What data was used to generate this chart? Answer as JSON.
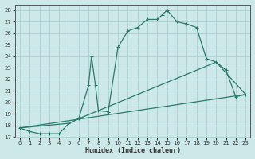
{
  "xlabel": "Humidex (Indice chaleur)",
  "ylabel": "",
  "bg_color": "#cce8e8",
  "grid_color": "#aad0d0",
  "line_color": "#2a7a6a",
  "xlim": [
    -0.5,
    23.5
  ],
  "ylim": [
    17,
    28.5
  ],
  "xticks": [
    0,
    1,
    2,
    3,
    4,
    5,
    6,
    7,
    8,
    9,
    10,
    11,
    12,
    13,
    14,
    15,
    16,
    17,
    18,
    19,
    20,
    21,
    22,
    23
  ],
  "yticks": [
    17,
    18,
    19,
    20,
    21,
    22,
    23,
    24,
    25,
    26,
    27,
    28
  ],
  "main_x": [
    0,
    1,
    2,
    3,
    4,
    5,
    6,
    7,
    7.3,
    7.7,
    8,
    9,
    10,
    11,
    12,
    13,
    14,
    14.5,
    15,
    16,
    17,
    18,
    19,
    20,
    21,
    22,
    23
  ],
  "main_y": [
    17.8,
    17.5,
    17.3,
    17.3,
    17.3,
    18.2,
    18.6,
    21.5,
    24.0,
    21.5,
    19.3,
    19.2,
    24.8,
    26.2,
    26.5,
    27.2,
    27.2,
    27.6,
    28.0,
    27.0,
    26.8,
    26.5,
    23.8,
    23.5,
    22.8,
    20.5,
    20.7
  ],
  "line2_x": [
    0,
    5,
    6,
    20,
    23
  ],
  "line2_y": [
    17.8,
    18.2,
    18.6,
    23.5,
    20.7
  ],
  "line3_x": [
    0,
    23
  ],
  "line3_y": [
    17.8,
    20.7
  ]
}
